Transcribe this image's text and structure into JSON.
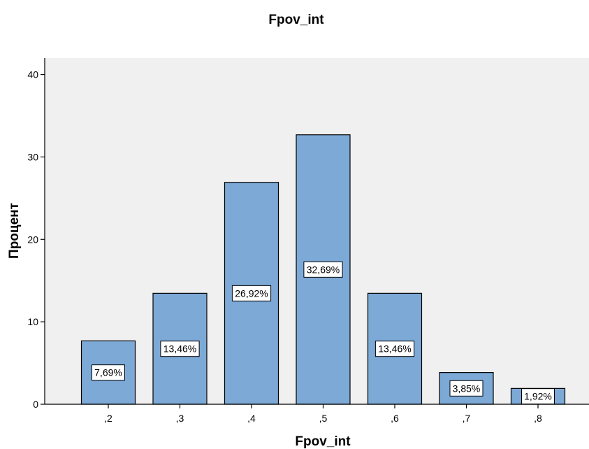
{
  "chart_data": {
    "type": "bar",
    "title": "Fpov_int",
    "xlabel": "Fpov_int",
    "ylabel": "Процент",
    "categories": [
      ",2",
      ",3",
      ",4",
      ",5",
      ",6",
      ",7",
      ",8"
    ],
    "values": [
      7.69,
      13.46,
      26.92,
      32.69,
      13.46,
      3.85,
      1.92
    ],
    "data_labels": [
      "7,69%",
      "13,46%",
      "26,92%",
      "32,69%",
      "13,46%",
      "3,85%",
      "1,92%"
    ],
    "ylim": [
      0,
      42
    ],
    "yticks": [
      0,
      10,
      20,
      30,
      40
    ],
    "ytick_labels": [
      "0",
      "10",
      "20",
      "30",
      "40"
    ],
    "grid": false,
    "colors": {
      "plot_background": "#f0f0f0",
      "bar_fill": "#7da9d6",
      "bar_stroke": "#000000",
      "label_box": "#ffffff"
    }
  }
}
